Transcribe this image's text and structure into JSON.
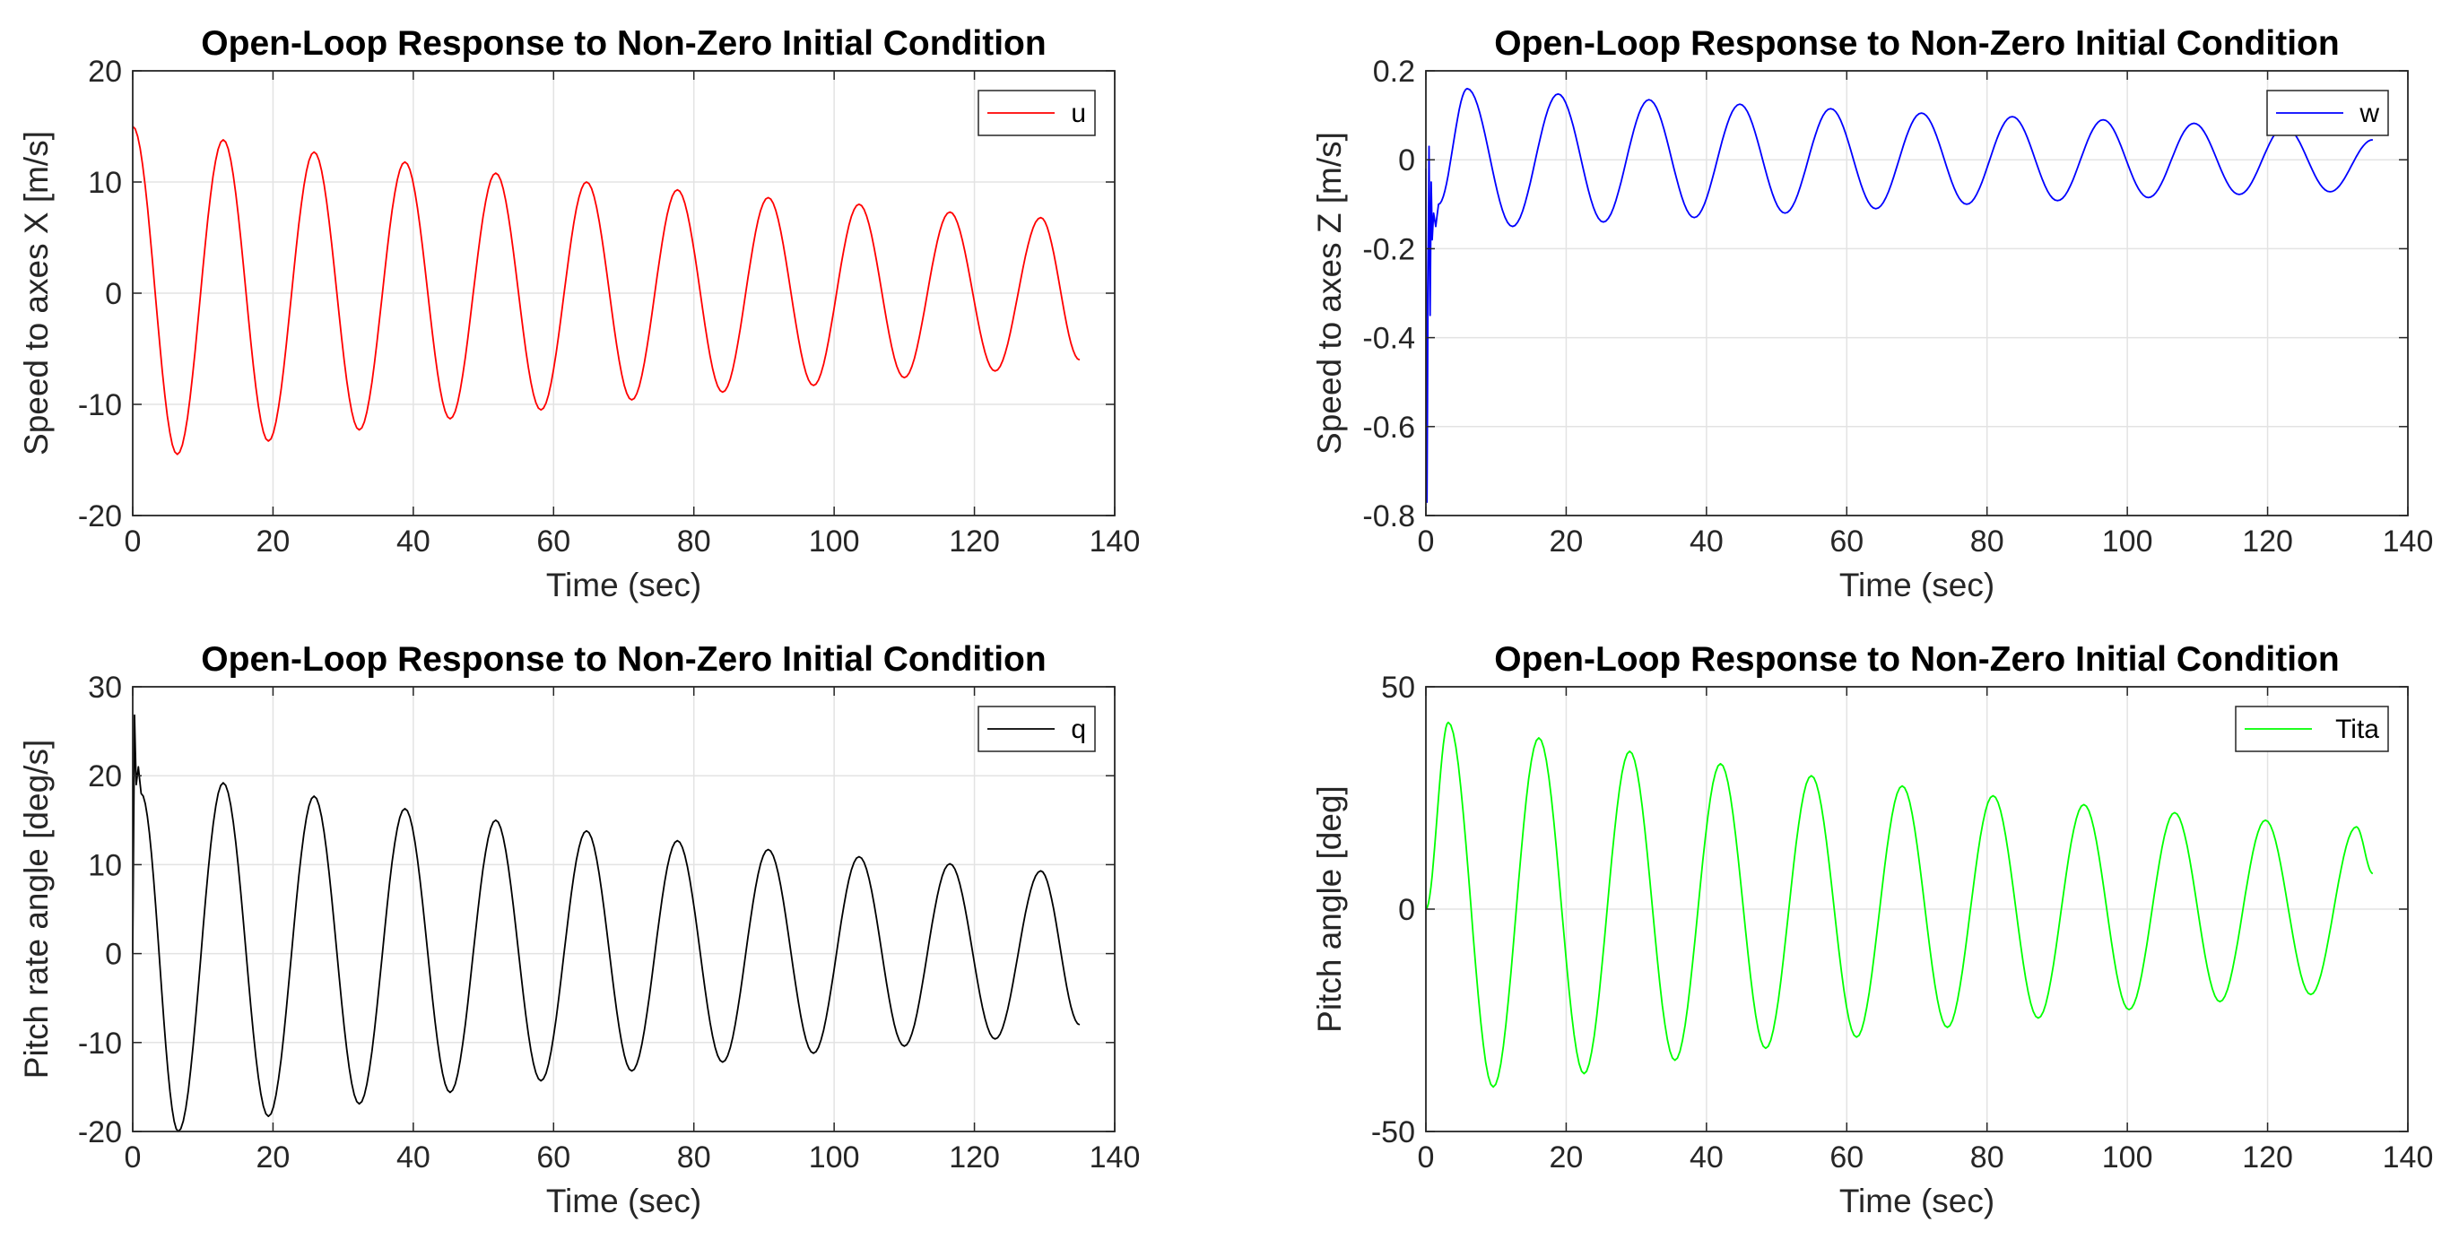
{
  "chart_data": [
    {
      "type": "line",
      "title": "Open-Loop Response to Non-Zero Initial Condition",
      "xlabel": "Time (sec)",
      "ylabel": "Speed to axes X [m/s]",
      "xlim": [
        0,
        140
      ],
      "ylim": [
        -20,
        20
      ],
      "xticks": [
        0,
        20,
        40,
        60,
        80,
        100,
        120,
        140
      ],
      "yticks": [
        -20,
        -10,
        0,
        10,
        20
      ],
      "grid": true,
      "legend_position": "top-right",
      "series": [
        {
          "name": "u",
          "color": "#ff0000",
          "x": [
            0,
            6.35,
            12.9,
            19.35,
            25.85,
            32.3,
            38.8,
            45.25,
            51.75,
            58.2,
            64.7,
            71.15,
            77.65,
            84.1,
            90.6,
            97.05,
            103.55,
            110.0,
            116.5,
            122.95,
            129.45,
            135
          ],
          "y": [
            15,
            -14.5,
            13.8,
            -13.3,
            12.7,
            -12.3,
            11.8,
            -11.3,
            10.8,
            -10.5,
            10.0,
            -9.6,
            9.3,
            -8.9,
            8.6,
            -8.3,
            8.0,
            -7.6,
            7.3,
            -7.0,
            6.8,
            -6.0
          ]
        }
      ]
    },
    {
      "type": "line",
      "title": "Open-Loop Response to Non-Zero Initial Condition",
      "xlabel": "Time (sec)",
      "ylabel": "Speed to axes Z [m/s]",
      "xlim": [
        0,
        140
      ],
      "ylim": [
        -0.8,
        0.2
      ],
      "xticks": [
        0,
        20,
        40,
        60,
        80,
        100,
        120,
        140
      ],
      "yticks": [
        -0.8,
        -0.6,
        -0.4,
        -0.2,
        0,
        0.2
      ],
      "grid": true,
      "legend_position": "top-right",
      "series": [
        {
          "name": "w",
          "color": "#0000ff",
          "x": [
            0,
            0.15,
            0.3,
            0.45,
            0.6,
            0.75,
            0.9,
            1.1,
            1.4,
            1.8,
            5.9,
            12.35,
            18.85,
            25.3,
            31.8,
            38.25,
            44.75,
            51.2,
            57.7,
            64.15,
            70.65,
            77.1,
            83.6,
            90.05,
            96.55,
            103.0,
            109.5,
            115.95,
            122.45,
            128.9,
            135
          ],
          "y": [
            -0.02,
            -0.77,
            -0.3,
            0.03,
            -0.35,
            -0.05,
            -0.18,
            -0.12,
            -0.15,
            -0.1,
            0.16,
            -0.15,
            0.148,
            -0.14,
            0.135,
            -0.13,
            0.125,
            -0.12,
            0.115,
            -0.11,
            0.105,
            -0.1,
            0.097,
            -0.092,
            0.09,
            -0.085,
            0.082,
            -0.078,
            0.075,
            -0.072,
            0.045
          ]
        }
      ]
    },
    {
      "type": "line",
      "title": "Open-Loop Response to Non-Zero Initial Condition",
      "xlabel": "Time (sec)",
      "ylabel": "Pitch rate angle [deg/s]",
      "xlim": [
        0,
        140
      ],
      "ylim": [
        -20,
        30
      ],
      "xticks": [
        0,
        20,
        40,
        60,
        80,
        100,
        120,
        140
      ],
      "yticks": [
        -20,
        -10,
        0,
        10,
        20,
        30
      ],
      "grid": true,
      "legend_position": "top-right",
      "series": [
        {
          "name": "q",
          "color": "#000000",
          "x": [
            0,
            0.25,
            0.5,
            0.8,
            1.2,
            6.5,
            12.9,
            19.35,
            25.85,
            32.3,
            38.8,
            45.25,
            51.75,
            58.2,
            64.7,
            71.15,
            77.65,
            84.1,
            90.6,
            97.05,
            103.55,
            110.0,
            116.5,
            122.95,
            129.45,
            135
          ],
          "y": [
            0,
            26.8,
            19.0,
            21.0,
            18.0,
            -20.0,
            19.2,
            -18.3,
            17.7,
            -16.9,
            16.3,
            -15.6,
            15.0,
            -14.3,
            13.8,
            -13.2,
            12.7,
            -12.2,
            11.7,
            -11.2,
            10.9,
            -10.4,
            10.1,
            -9.6,
            9.3,
            -8.0
          ]
        }
      ]
    },
    {
      "type": "line",
      "title": "Open-Loop Response to Non-Zero Initial Condition",
      "xlabel": "Time (sec)",
      "ylabel": "Pitch angle [deg]",
      "xlim": [
        0,
        140
      ],
      "ylim": [
        -50,
        50
      ],
      "xticks": [
        0,
        20,
        40,
        60,
        80,
        100,
        120,
        140
      ],
      "yticks": [
        -50,
        0,
        50
      ],
      "grid": true,
      "legend_position": "top-right",
      "series": [
        {
          "name": "Tita",
          "color": "#00ff00",
          "x": [
            0,
            3.2,
            9.6,
            16.1,
            22.55,
            29.05,
            35.5,
            42.0,
            48.45,
            54.95,
            61.4,
            67.9,
            74.35,
            80.85,
            87.3,
            93.8,
            100.25,
            106.75,
            113.2,
            119.7,
            126.15,
            132.65,
            135
          ],
          "y": [
            0,
            42.0,
            -40.0,
            38.5,
            -37.0,
            35.5,
            -34.0,
            32.7,
            -31.3,
            30.0,
            -28.8,
            27.7,
            -26.6,
            25.5,
            -24.5,
            23.5,
            -22.6,
            21.7,
            -20.8,
            20.0,
            -19.2,
            18.5,
            8.0
          ]
        }
      ]
    }
  ]
}
